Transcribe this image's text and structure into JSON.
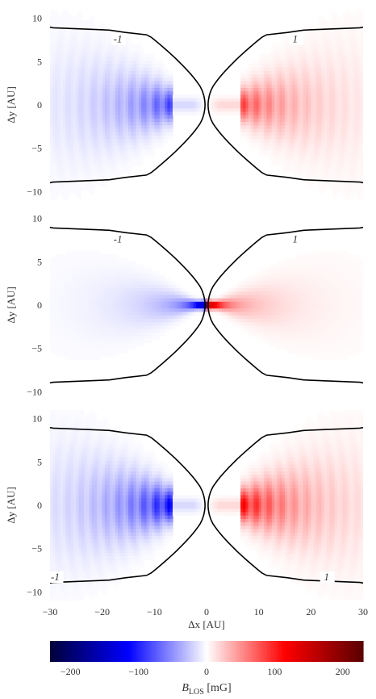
{
  "chart_data": [
    {
      "type": "heatmap",
      "panel": "top",
      "xlim": [
        -30,
        30
      ],
      "ylim": [
        -11,
        11
      ],
      "xticks": [
        -30,
        -20,
        -10,
        0,
        10,
        20,
        30
      ],
      "yticks": [
        10,
        5,
        0,
        -5,
        -10
      ],
      "ylabel": "Δy [AU]",
      "field_peak_mG": 110,
      "field_note": "wedge-shaped lobes with concentric ring structure, inner gap inside |Δx| < 6.5",
      "contours": [
        {
          "level": "-1",
          "x_at_y0": -0.3
        },
        {
          "level": "1",
          "x_at_y0": 0.3
        }
      ]
    },
    {
      "type": "heatmap",
      "panel": "middle",
      "xlim": [
        -30,
        30
      ],
      "ylim": [
        -11,
        11
      ],
      "xticks": [
        -30,
        -20,
        -10,
        0,
        10,
        20,
        30
      ],
      "yticks": [
        10,
        5,
        0,
        -5,
        -10
      ],
      "ylabel": "Δy [AU]",
      "field_peak_mG": 230,
      "field_note": "smooth lobes concentrated toward the center",
      "contours": [
        {
          "level": "-1",
          "x_at_y0": -0.3
        },
        {
          "level": "1",
          "x_at_y0": 0.3
        }
      ]
    },
    {
      "type": "heatmap",
      "panel": "bottom",
      "xlim": [
        -30,
        30
      ],
      "ylim": [
        -11,
        11
      ],
      "xticks": [
        -30,
        -20,
        -10,
        0,
        10,
        20,
        30
      ],
      "yticks": [
        10,
        5,
        0,
        -5,
        -10
      ],
      "ylabel": "Δy [AU]",
      "xlabel": "Δx [AU]",
      "field_peak_mG": 150,
      "field_note": "wedge-shaped lobes with concentric ring structure, inner gap inside |Δx| < 6.5",
      "contours": [
        {
          "level": "-1",
          "x_at_y0": -0.3
        },
        {
          "level": "1",
          "x_at_y0": 0.3
        }
      ]
    }
  ],
  "colorbar": {
    "range": [
      -230,
      230
    ],
    "ticks": [
      -200,
      -100,
      0,
      100,
      200
    ],
    "label_main": "B",
    "label_sub": "LOS",
    "label_unit": " [mG]",
    "colors": {
      "negative_max": "#00003a",
      "negative_mid": "#0000ff",
      "zero": "#ffffff",
      "positive_mid": "#ff0000",
      "positive_max": "#5a0000"
    }
  }
}
